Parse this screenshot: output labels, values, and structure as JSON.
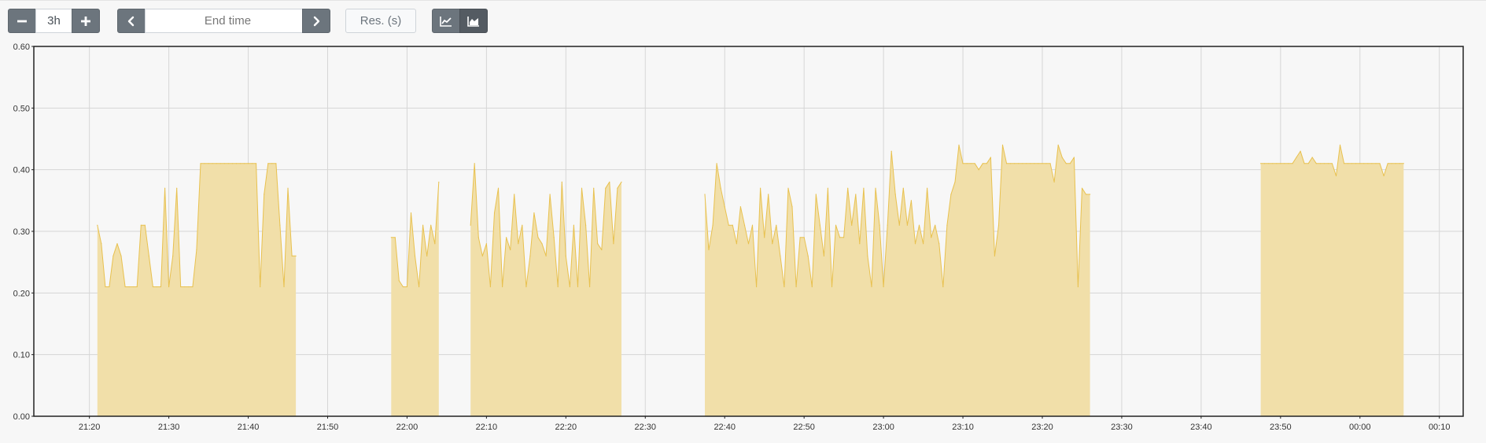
{
  "toolbar": {
    "range_value": "3h",
    "decrease_icon": "minus-icon",
    "increase_icon": "plus-icon",
    "prev_icon": "chevron-left-icon",
    "next_icon": "chevron-right-icon",
    "end_time_placeholder": "End time",
    "resolution_placeholder": "Res. (s)",
    "line_mode_icon": "line-chart-icon",
    "stacked_mode_icon": "area-chart-icon",
    "selected_mode": "stacked"
  },
  "colors": {
    "series_stroke": "#e8c14f",
    "series_fill": "#f1dfa9",
    "button_dark": "#6c757d",
    "button_active": "#545b62",
    "grid": "#d6d6d6"
  },
  "chart_data": {
    "type": "area",
    "grid": true,
    "xlim": [
      "21:13",
      "00:13"
    ],
    "ylim": [
      0,
      0.6
    ],
    "y_ticks": [
      "0.00",
      "0.10",
      "0.20",
      "0.30",
      "0.40",
      "0.50",
      "0.60"
    ],
    "x_ticks": [
      "21:20",
      "21:30",
      "21:40",
      "21:50",
      "22:00",
      "22:10",
      "22:20",
      "22:30",
      "22:40",
      "22:50",
      "23:00",
      "23:10",
      "23:20",
      "23:30",
      "23:40",
      "23:50",
      "00:00",
      "00:10"
    ],
    "series": [
      {
        "segments": [
          {
            "start": "21:21:00",
            "step_s": 30,
            "values": [
              0.31,
              0.28,
              0.21,
              0.21,
              0.26,
              0.28,
              0.26,
              0.21,
              0.21,
              0.21,
              0.21,
              0.31,
              0.31,
              0.26,
              0.21,
              0.21,
              0.21,
              0.37,
              0.21,
              0.26,
              0.37,
              0.21,
              0.21,
              0.21,
              0.21,
              0.27,
              0.41,
              0.41,
              0.41,
              0.41,
              0.41,
              0.41,
              0.41,
              0.41,
              0.41,
              0.41,
              0.41,
              0.41,
              0.41,
              0.41,
              0.41,
              0.21,
              0.36,
              0.41,
              0.41,
              0.41,
              0.31,
              0.21,
              0.37,
              0.26,
              0.26
            ]
          },
          {
            "start": "21:58:00",
            "step_s": 30,
            "values": [
              0.29,
              0.29,
              0.22,
              0.21,
              0.21,
              0.33,
              0.26,
              0.21,
              0.31,
              0.26,
              0.31,
              0.28,
              0.38
            ]
          },
          {
            "start": "22:08:00",
            "step_s": 30,
            "values": [
              0.31,
              0.41,
              0.29,
              0.26,
              0.28,
              0.21,
              0.33,
              0.37,
              0.21,
              0.29,
              0.27,
              0.36,
              0.28,
              0.31,
              0.21,
              0.26,
              0.33,
              0.29,
              0.28,
              0.26,
              0.36,
              0.29,
              0.21,
              0.38,
              0.26,
              0.21,
              0.31,
              0.21,
              0.37,
              0.31,
              0.21,
              0.37,
              0.28,
              0.27,
              0.37,
              0.38,
              0.28,
              0.37,
              0.38
            ]
          },
          {
            "start": "22:37:30",
            "step_s": 30,
            "values": [
              0.36,
              0.27,
              0.31,
              0.41,
              0.37,
              0.34,
              0.31,
              0.31,
              0.28,
              0.34,
              0.31,
              0.28,
              0.31,
              0.21,
              0.37,
              0.29,
              0.36,
              0.28,
              0.31,
              0.26,
              0.21,
              0.37,
              0.34,
              0.21,
              0.29,
              0.29,
              0.26,
              0.21,
              0.36,
              0.31,
              0.26,
              0.37,
              0.21,
              0.31,
              0.29,
              0.29,
              0.37,
              0.31,
              0.36,
              0.28,
              0.37,
              0.26,
              0.21,
              0.37,
              0.31,
              0.21,
              0.31,
              0.43,
              0.36,
              0.31,
              0.37,
              0.31,
              0.35,
              0.28,
              0.31,
              0.28,
              0.37,
              0.29,
              0.31,
              0.28,
              0.21,
              0.31,
              0.36,
              0.38,
              0.44,
              0.41,
              0.41,
              0.41,
              0.41,
              0.4,
              0.41,
              0.41,
              0.42,
              0.26,
              0.31,
              0.44,
              0.41,
              0.41,
              0.41,
              0.41,
              0.41,
              0.41,
              0.41,
              0.41,
              0.41,
              0.41,
              0.41,
              0.41,
              0.38,
              0.44,
              0.42,
              0.41,
              0.41,
              0.42,
              0.21,
              0.37,
              0.36,
              0.36
            ]
          },
          {
            "start": "23:47:30",
            "step_s": 30,
            "values": [
              0.41,
              0.41,
              0.41,
              0.41,
              0.41,
              0.41,
              0.41,
              0.41,
              0.41,
              0.42,
              0.43,
              0.41,
              0.41,
              0.42,
              0.41,
              0.41,
              0.41,
              0.41,
              0.41,
              0.39,
              0.44,
              0.41,
              0.41,
              0.41,
              0.41,
              0.41,
              0.41,
              0.41,
              0.41,
              0.41,
              0.41,
              0.39,
              0.41,
              0.41,
              0.41,
              0.41,
              0.41
            ]
          }
        ]
      }
    ]
  }
}
